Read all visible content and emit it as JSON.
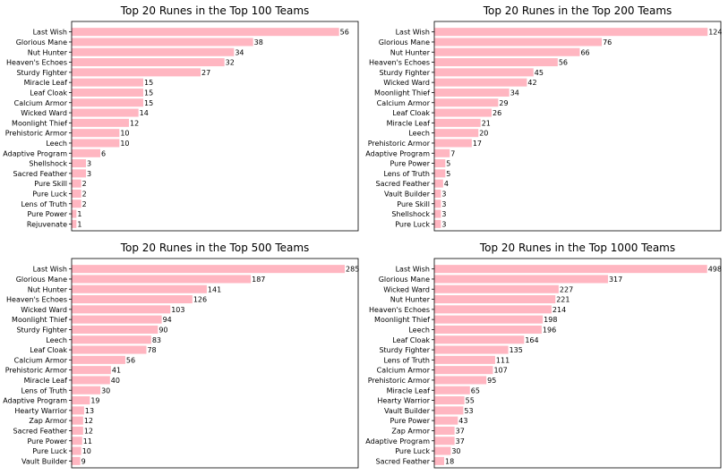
{
  "bar_color": "#ffb6c1",
  "chart_data": [
    {
      "type": "bar",
      "orientation": "horizontal",
      "title": "Top 20 Runes in the Top 100 Teams",
      "xlabel": "",
      "ylabel": "",
      "xlim": [
        0,
        60
      ],
      "grid": false,
      "categories": [
        "Last Wish",
        "Glorious Mane",
        "Nut Hunter",
        "Heaven's Echoes",
        "Sturdy Fighter",
        "Miracle Leaf",
        "Leaf Cloak",
        "Calcium Armor",
        "Wicked Ward",
        "Moonlight Thief",
        "Prehistoric Armor",
        "Leech",
        "Adaptive Program",
        "Shellshock",
        "Sacred Feather",
        "Pure Skill",
        "Pure Luck",
        "Lens of Truth",
        "Pure Power",
        "Rejuvenate"
      ],
      "values": [
        56,
        38,
        34,
        32,
        27,
        15,
        15,
        15,
        14,
        12,
        10,
        10,
        6,
        3,
        3,
        2,
        2,
        2,
        1,
        1
      ]
    },
    {
      "type": "bar",
      "orientation": "horizontal",
      "title": "Top 20 Runes in the Top 200 Teams",
      "xlabel": "",
      "ylabel": "",
      "xlim": [
        0,
        130
      ],
      "grid": false,
      "categories": [
        "Last Wish",
        "Glorious Mane",
        "Nut Hunter",
        "Heaven's Echoes",
        "Sturdy Fighter",
        "Wicked Ward",
        "Moonlight Thief",
        "Calcium Armor",
        "Leaf Cloak",
        "Miracle Leaf",
        "Leech",
        "Prehistoric Armor",
        "Adaptive Program",
        "Pure Power",
        "Lens of Truth",
        "Sacred Feather",
        "Vault Builder",
        "Pure Skill",
        "Shellshock",
        "Pure Luck"
      ],
      "values": [
        124,
        76,
        66,
        56,
        45,
        42,
        34,
        29,
        26,
        21,
        20,
        17,
        7,
        5,
        5,
        4,
        3,
        3,
        3,
        3
      ]
    },
    {
      "type": "bar",
      "orientation": "horizontal",
      "title": "Top 20 Runes in the Top 500 Teams",
      "xlabel": "",
      "ylabel": "",
      "xlim": [
        0,
        299
      ],
      "grid": false,
      "categories": [
        "Last Wish",
        "Glorious Mane",
        "Nut Hunter",
        "Heaven's Echoes",
        "Wicked Ward",
        "Moonlight Thief",
        "Sturdy Fighter",
        "Leech",
        "Leaf Cloak",
        "Calcium Armor",
        "Prehistoric Armor",
        "Miracle Leaf",
        "Lens of Truth",
        "Adaptive Program",
        "Hearty Warrior",
        "Zap Armor",
        "Sacred Feather",
        "Pure Power",
        "Pure Luck",
        "Vault Builder"
      ],
      "values": [
        285,
        187,
        141,
        126,
        103,
        94,
        90,
        83,
        78,
        56,
        41,
        40,
        30,
        19,
        13,
        12,
        12,
        11,
        10,
        9
      ]
    },
    {
      "type": "bar",
      "orientation": "horizontal",
      "title": "Top 20 Runes in the Top 1000 Teams",
      "xlabel": "",
      "ylabel": "",
      "xlim": [
        0,
        523
      ],
      "grid": false,
      "categories": [
        "Last Wish",
        "Glorious Mane",
        "Wicked Ward",
        "Nut Hunter",
        "Heaven's Echoes",
        "Moonlight Thief",
        "Leech",
        "Leaf Cloak",
        "Sturdy Fighter",
        "Lens of Truth",
        "Calcium Armor",
        "Prehistoric Armor",
        "Miracle Leaf",
        "Hearty Warrior",
        "Vault Builder",
        "Pure Power",
        "Zap Armor",
        "Adaptive Program",
        "Pure Luck",
        "Sacred Feather"
      ],
      "values": [
        498,
        317,
        227,
        221,
        214,
        198,
        196,
        164,
        135,
        111,
        107,
        95,
        65,
        55,
        53,
        43,
        37,
        37,
        30,
        18
      ]
    }
  ]
}
